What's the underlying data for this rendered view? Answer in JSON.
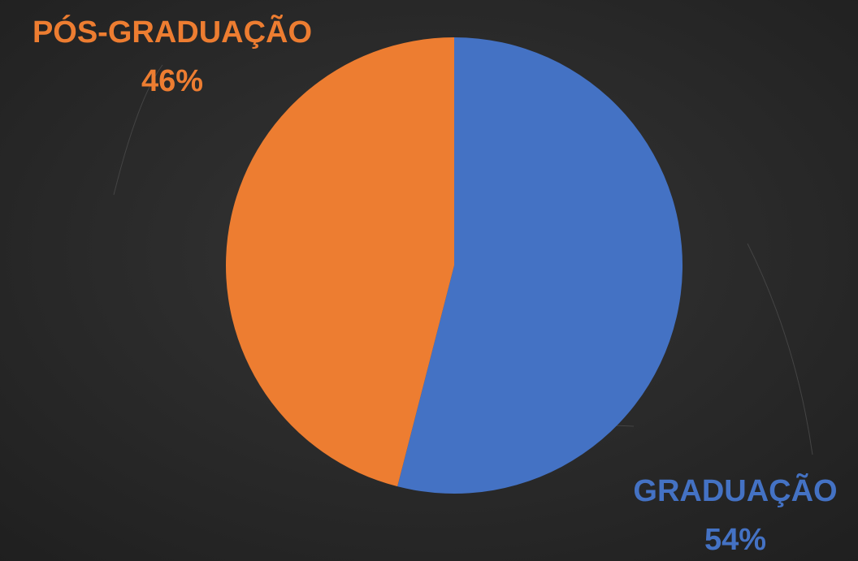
{
  "chart_data": {
    "type": "pie",
    "categories": [
      "GRADUAÇÃO",
      "PÓS-GRADUAÇÃO"
    ],
    "values": [
      54,
      46
    ],
    "value_labels": [
      "54%",
      "46%"
    ],
    "colors": [
      "#4472c4",
      "#ed7d31"
    ]
  }
}
